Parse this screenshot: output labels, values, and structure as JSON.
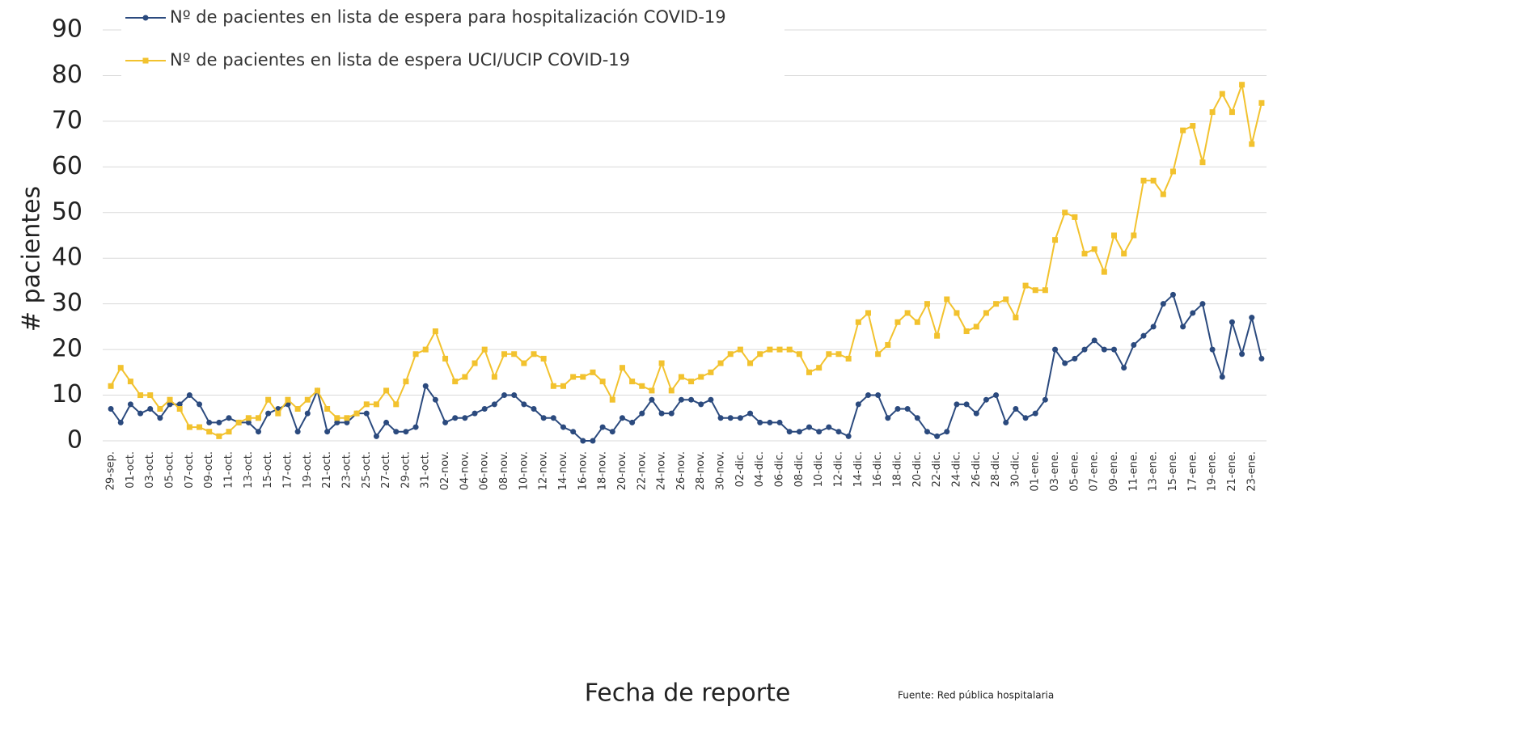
{
  "chart_data": {
    "type": "line",
    "y_label": "# pacientes",
    "x_label": "Fecha de reporte",
    "source": "Fuente: Red pública hospitalaria",
    "categories": [
      "29-sep.",
      null,
      "01-oct.",
      null,
      "03-oct.",
      null,
      "05-oct.",
      null,
      "07-oct.",
      null,
      "09-oct.",
      null,
      "11-oct.",
      null,
      "13-oct.",
      null,
      "15-oct.",
      null,
      "17-oct.",
      null,
      "19-oct.",
      null,
      "21-oct.",
      null,
      "23-oct.",
      null,
      "25-oct.",
      null,
      "27-oct.",
      null,
      "29-oct.",
      null,
      "31-oct.",
      null,
      "02-nov.",
      null,
      "04-nov.",
      null,
      "06-nov.",
      null,
      "08-nov.",
      null,
      "10-nov.",
      null,
      "12-nov.",
      null,
      "14-nov.",
      null,
      "16-nov.",
      null,
      "18-nov.",
      null,
      "20-nov.",
      null,
      "22-nov.",
      null,
      "24-nov.",
      null,
      "26-nov.",
      null,
      "28-nov.",
      null,
      "30-nov.",
      null,
      "02-dic.",
      null,
      "04-dic.",
      null,
      "06-dic.",
      null,
      "08-dic.",
      null,
      "10-dic.",
      null,
      "12-dic.",
      null,
      "14-dic.",
      null,
      "16-dic.",
      null,
      "18-dic.",
      null,
      "20-dic.",
      null,
      "22-dic.",
      null,
      "24-dic.",
      null,
      "26-dic.",
      null,
      "28-dic.",
      null,
      "30-dic.",
      null,
      "01-ene.",
      null,
      "03-ene.",
      null,
      "05-ene.",
      null,
      "07-ene.",
      null,
      "09-ene.",
      null,
      "11-ene.",
      null,
      "13-ene.",
      null,
      "15-ene.",
      null,
      "17-ene.",
      null,
      "19-ene.",
      null,
      "21-ene.",
      null,
      "23-ene.",
      null
    ],
    "series": [
      {
        "name": "Nº de pacientes en lista de espera para hospitalización COVID-19",
        "color": "#2b4a7e",
        "marker": "circle",
        "values": [
          7,
          4,
          8,
          6,
          7,
          5,
          8,
          8,
          10,
          8,
          4,
          4,
          5,
          4,
          4,
          2,
          6,
          7,
          8,
          2,
          6,
          11,
          2,
          4,
          4,
          6,
          6,
          1,
          4,
          2,
          2,
          3,
          12,
          9,
          4,
          5,
          5,
          6,
          7,
          8,
          10,
          10,
          8,
          7,
          5,
          5,
          3,
          2,
          0,
          0,
          3,
          2,
          5,
          4,
          6,
          9,
          6,
          6,
          9,
          9,
          8,
          9,
          5,
          5,
          5,
          6,
          4,
          4,
          4,
          2,
          2,
          3,
          2,
          3,
          2,
          1,
          8,
          10,
          10,
          5,
          7,
          7,
          5,
          2,
          1,
          2,
          8,
          8,
          6,
          9,
          10,
          4,
          7,
          5,
          6,
          9,
          20,
          17,
          18,
          20,
          22,
          20,
          20,
          16,
          21,
          23,
          25,
          30,
          32,
          25,
          28,
          30,
          20,
          14,
          26,
          19,
          27,
          18
        ]
      },
      {
        "name": "Nº de pacientes en lista de espera UCI/UCIP COVID-19",
        "color": "#f2c22e",
        "marker": "square",
        "values": [
          12,
          16,
          13,
          10,
          10,
          7,
          9,
          7,
          3,
          3,
          2,
          1,
          2,
          4,
          5,
          5,
          9,
          6,
          9,
          7,
          9,
          11,
          7,
          5,
          5,
          6,
          8,
          8,
          11,
          8,
          13,
          19,
          20,
          24,
          18,
          13,
          14,
          17,
          20,
          14,
          19,
          19,
          17,
          19,
          18,
          12,
          12,
          14,
          14,
          15,
          13,
          9,
          16,
          13,
          12,
          11,
          17,
          11,
          14,
          13,
          14,
          15,
          17,
          19,
          20,
          17,
          19,
          20,
          20,
          20,
          19,
          15,
          16,
          19,
          19,
          18,
          26,
          28,
          19,
          21,
          26,
          28,
          26,
          30,
          23,
          31,
          28,
          24,
          25,
          28,
          30,
          31,
          27,
          34,
          33,
          33,
          44,
          50,
          49,
          41,
          42,
          37,
          45,
          41,
          45,
          57,
          57,
          54,
          59,
          68,
          69,
          61,
          72,
          76,
          72,
          78,
          65,
          74
        ]
      }
    ],
    "ylim": [
      0,
      90
    ],
    "yticks": [
      0,
      10,
      20,
      30,
      40,
      50,
      60,
      70,
      80,
      90
    ],
    "grid": true,
    "legend": "top-left"
  }
}
